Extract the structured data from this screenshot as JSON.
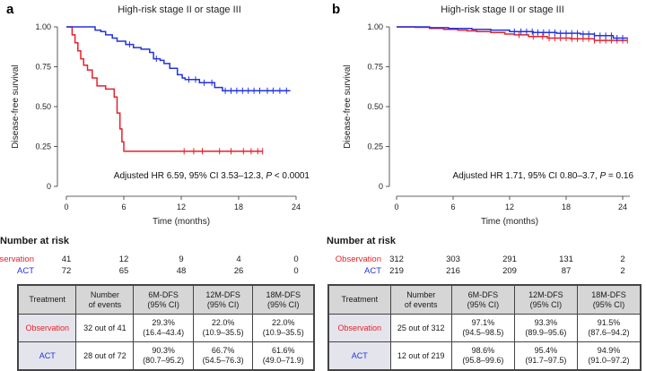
{
  "chart_data": [
    {
      "panel": "a",
      "type": "line",
      "title": "High-risk stage II or stage III",
      "xlabel": "Time (months)",
      "ylabel": "Disease-free survival",
      "xlim": [
        0,
        24
      ],
      "ylim": [
        0,
        1
      ],
      "xticks": [
        "0",
        "6",
        "12",
        "18",
        "24"
      ],
      "yticks": [
        "0",
        "0.25",
        "0.50",
        "0.75",
        "1.00"
      ],
      "annotation": {
        "prefix": "Adjusted HR 6.59, 95% CI 3.53–12.3, ",
        "p_label": "P",
        "p_value": " < 0.0001"
      },
      "series": [
        {
          "name": "Observation",
          "color": "#e8202a",
          "x": [
            0,
            0.6,
            0.9,
            1.2,
            1.5,
            1.8,
            2.2,
            2.7,
            3.2,
            4.1,
            5.0,
            5.3,
            5.6,
            5.8,
            6.0,
            6.3,
            20.5
          ],
          "y": [
            1.0,
            0.95,
            0.9,
            0.85,
            0.8,
            0.76,
            0.73,
            0.68,
            0.63,
            0.61,
            0.56,
            0.46,
            0.36,
            0.28,
            0.22,
            0.22,
            0.22
          ],
          "censor_x": [
            12.3,
            13.3,
            14.2,
            16.0,
            17.2,
            18.5,
            19.3,
            20.0,
            20.5
          ]
        },
        {
          "name": "ACT",
          "color": "#2233dd",
          "x": [
            0,
            2.2,
            3.0,
            3.6,
            4.1,
            4.8,
            5.3,
            6.2,
            7.0,
            7.8,
            8.7,
            9.1,
            9.8,
            10.2,
            10.8,
            11.6,
            12.1,
            12.4,
            13.2,
            13.9,
            15.0,
            15.5,
            16.3,
            23.4
          ],
          "y": [
            1.0,
            1.0,
            0.98,
            0.97,
            0.95,
            0.93,
            0.91,
            0.89,
            0.87,
            0.86,
            0.84,
            0.8,
            0.79,
            0.77,
            0.74,
            0.7,
            0.68,
            0.67,
            0.67,
            0.65,
            0.65,
            0.62,
            0.6,
            0.6
          ],
          "censor_x": [
            6.6,
            9.4,
            12.8,
            13.5,
            14.4,
            15.2,
            16.6,
            17.2,
            17.8,
            18.4,
            19.0,
            19.6,
            20.2,
            21.0,
            21.6,
            22.3,
            23.0
          ]
        }
      ],
      "risk": {
        "header": "Number at risk",
        "rows": [
          {
            "name": "Observation",
            "values": [
              "41",
              "12",
              "9",
              "4",
              "0"
            ]
          },
          {
            "name": "ACT",
            "values": [
              "72",
              "65",
              "48",
              "26",
              "0"
            ]
          }
        ]
      },
      "table": {
        "headers": [
          "Treatment",
          "Number\nof events",
          "6M-DFS\n(95% CI)",
          "12M-DFS\n(95% CI)",
          "18M-DFS\n(95% CI)"
        ],
        "rows": [
          {
            "name": "Observation",
            "events": "32 out of 41",
            "m6": "29.3%\n(16.4–43.4)",
            "m12": "22.0%\n(10.9–35.5)",
            "m18": "22.0%\n(10.9–35.5)"
          },
          {
            "name": "ACT",
            "events": "28 out of 72",
            "m6": "90.3%\n(80.7–95.2)",
            "m12": "66.7%\n(54.5–76.3)",
            "m18": "61.6%\n(49.0–71.9)"
          }
        ]
      }
    },
    {
      "panel": "b",
      "type": "line",
      "title": "High-risk stage II or stage III",
      "xlabel": "Time (months)",
      "ylabel": "Disease-free survival",
      "xlim": [
        0,
        24
      ],
      "ylim": [
        0,
        1
      ],
      "xticks": [
        "0",
        "6",
        "12",
        "18",
        "24"
      ],
      "yticks": [
        "0",
        "0.25",
        "0.50",
        "0.75",
        "1.00"
      ],
      "annotation": {
        "prefix": "Adjusted HR 1.71, 95% CI 0.80–3.7, ",
        "p_label": "P",
        "p_value": " = 0.16"
      },
      "series": [
        {
          "name": "Observation",
          "color": "#e8202a",
          "x": [
            0,
            2.0,
            3.5,
            5.0,
            6.5,
            7.5,
            8.5,
            10.0,
            11.5,
            12.5,
            14.0,
            16.0,
            18.5,
            21.0,
            24.5
          ],
          "y": [
            1.0,
            0.997,
            0.99,
            0.985,
            0.98,
            0.975,
            0.97,
            0.965,
            0.955,
            0.95,
            0.94,
            0.93,
            0.925,
            0.915,
            0.915
          ],
          "censor_x": [
            13.0,
            14.5,
            15.5,
            16.2,
            16.8,
            17.4,
            18.0,
            18.6,
            19.2,
            19.8,
            20.4,
            21.0,
            21.6,
            22.2,
            22.8,
            23.4,
            24.0,
            24.5
          ]
        },
        {
          "name": "ACT",
          "color": "#2233dd",
          "x": [
            0,
            3.5,
            5.5,
            8.0,
            10.0,
            12.0,
            14.5,
            17.0,
            19.5,
            21.0,
            23.0,
            24.5
          ],
          "y": [
            1.0,
            0.995,
            0.99,
            0.985,
            0.98,
            0.97,
            0.965,
            0.96,
            0.955,
            0.945,
            0.93,
            0.93
          ],
          "censor_x": [
            12.5,
            13.2,
            13.8,
            14.4,
            15.0,
            15.6,
            16.2,
            16.8,
            17.4,
            18.0,
            18.6,
            19.2,
            19.8,
            20.4,
            21.0,
            21.6,
            22.2,
            22.8,
            23.4,
            24.0
          ]
        }
      ],
      "risk": {
        "header": "Number at risk",
        "rows": [
          {
            "name": "Observation",
            "values": [
              "312",
              "303",
              "291",
              "131",
              "2"
            ]
          },
          {
            "name": "ACT",
            "values": [
              "219",
              "216",
              "209",
              "87",
              "2"
            ]
          }
        ]
      },
      "table": {
        "headers": [
          "Treatment",
          "Number\nof events",
          "6M-DFS\n(95% CI)",
          "12M-DFS\n(95% CI)",
          "18M-DFS\n(95% CI)"
        ],
        "rows": [
          {
            "name": "Observation",
            "events": "25 out of 312",
            "m6": "97.1%\n(94.5–98.5)",
            "m12": "93.3%\n(89.9–95.6)",
            "m18": "91.5%\n(87.6–94.2)"
          },
          {
            "name": "ACT",
            "events": "12 out of 219",
            "m6": "98.6%\n(95.8–99.6)",
            "m12": "95.4%\n(91.7–97.5)",
            "m18": "94.9%\n(91.0–97.2)"
          }
        ]
      }
    }
  ]
}
